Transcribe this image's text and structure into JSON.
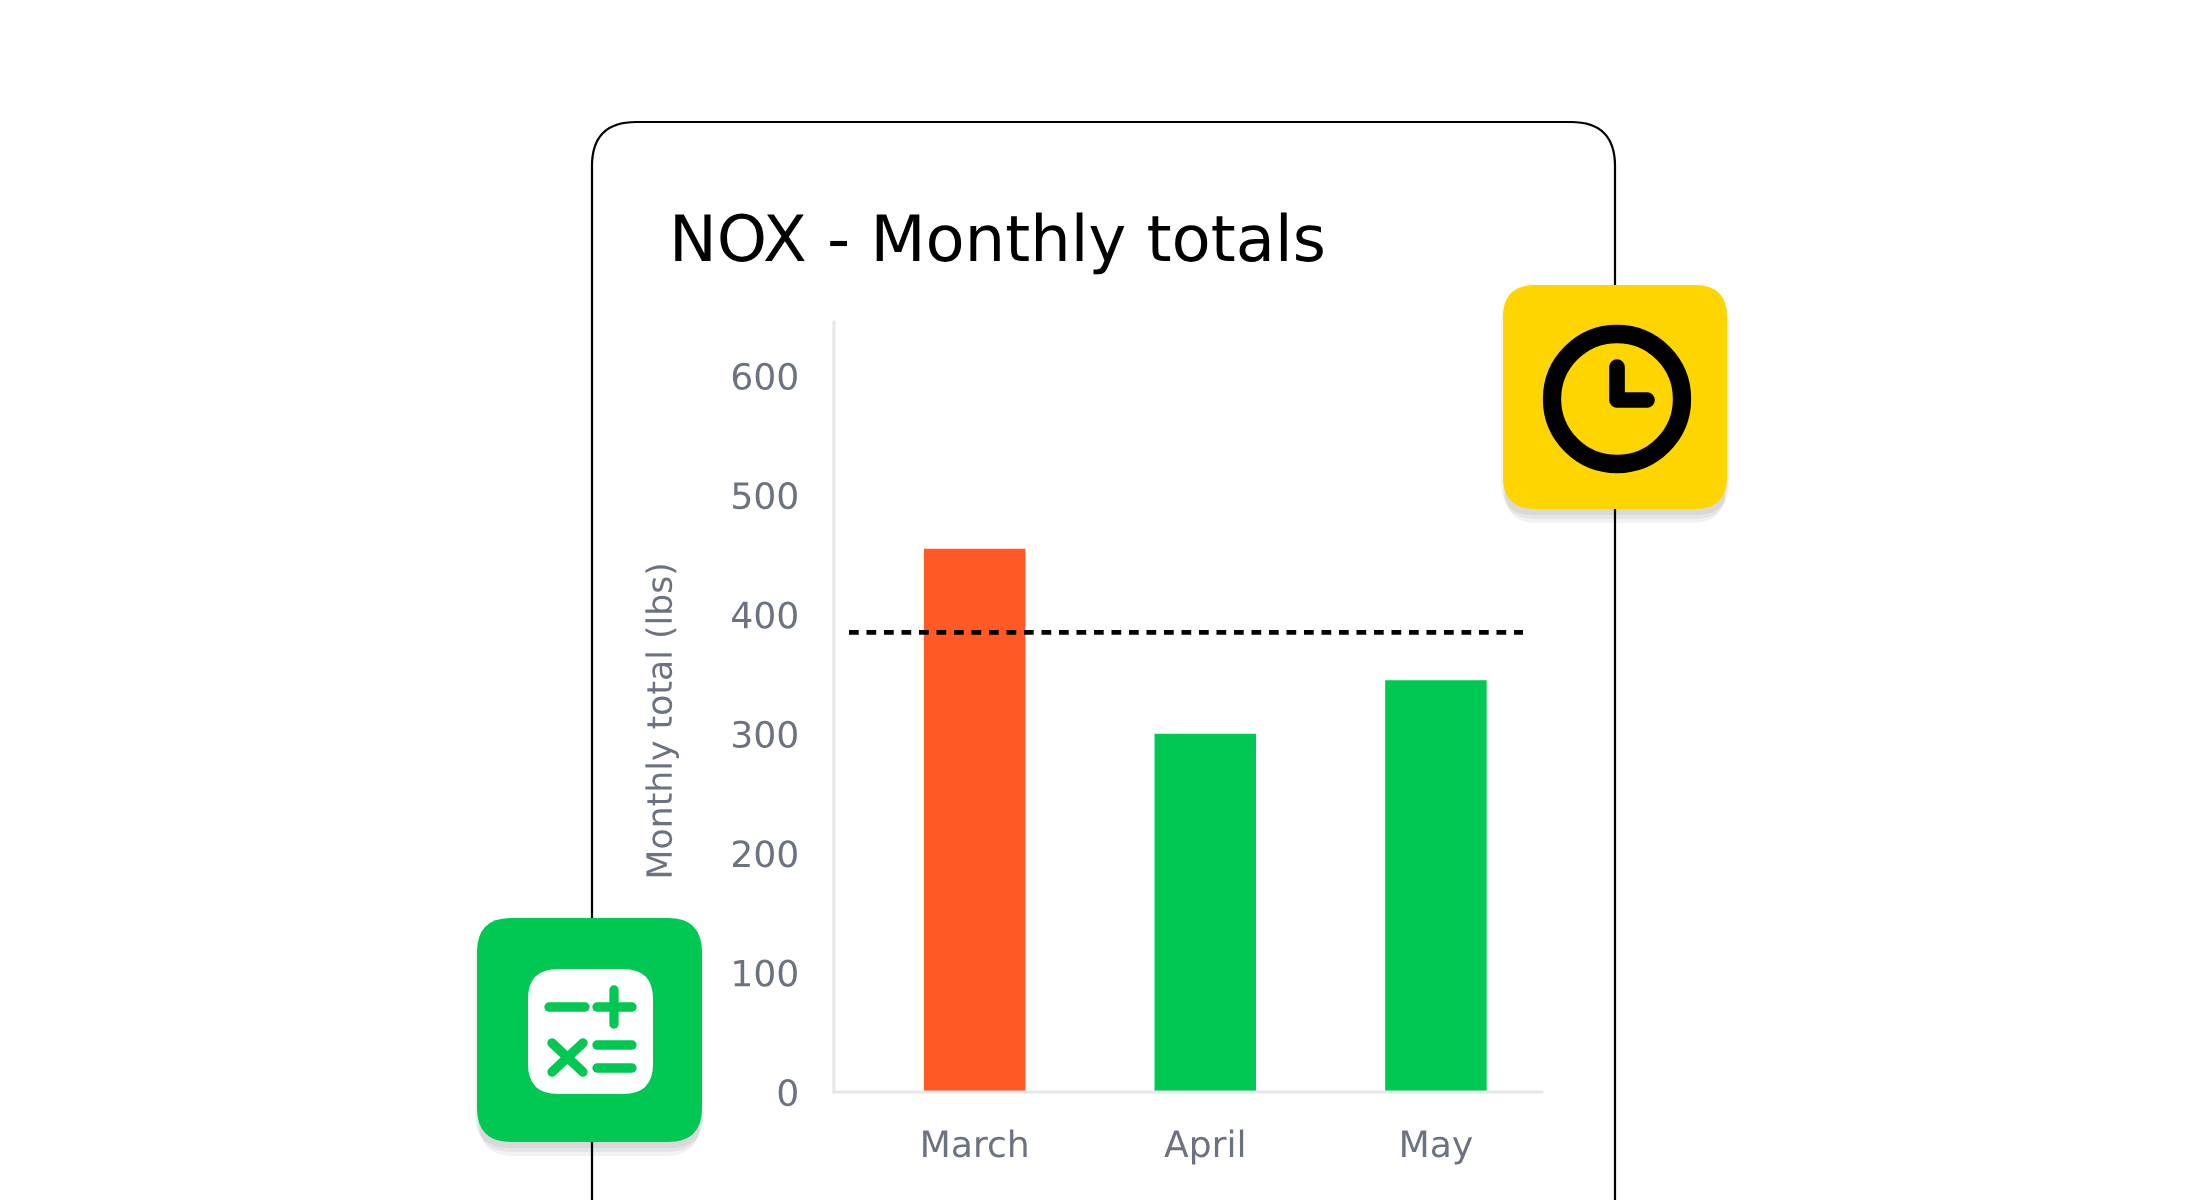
{
  "chart_data": {
    "type": "bar",
    "title": "NOX - Monthly totals",
    "ylabel": "Monthly total (lbs)",
    "categories": [
      "March",
      "April",
      "May"
    ],
    "values": [
      455,
      300,
      345
    ],
    "colors": [
      "#FF5A25",
      "#00C853",
      "#00C853"
    ],
    "ylim": [
      0,
      645
    ],
    "yticks": [
      0,
      100,
      200,
      300,
      400,
      500,
      600
    ],
    "ref_lines": [
      {
        "axis": "y",
        "value": 385,
        "color": "#000000",
        "line_style": "dashed"
      }
    ]
  }
}
